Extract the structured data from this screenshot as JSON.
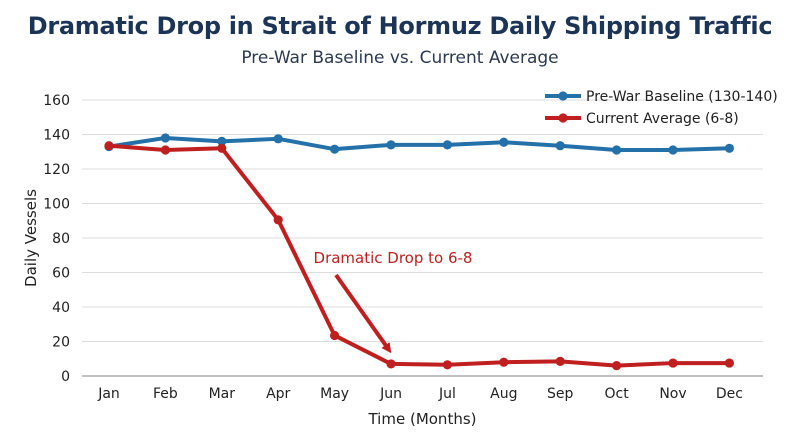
{
  "header": {
    "title": "Dramatic Drop in Strait of Hormuz Daily Shipping Traffic",
    "subtitle": "Pre-War Baseline vs. Current Average"
  },
  "colors": {
    "baseline": "#2470a9",
    "current": "#c01f1f",
    "grid": "#dcdcdc",
    "text": "#222222"
  },
  "chart_data": {
    "type": "line",
    "title": "Dramatic Drop in Strait of Hormuz Daily Shipping Traffic",
    "subtitle": "Pre-War Baseline vs. Current Average",
    "xlabel": "Time (Months)",
    "ylabel": "Daily Vessels",
    "categories": [
      "Jan",
      "Feb",
      "Mar",
      "Apr",
      "May",
      "Jun",
      "Jul",
      "Aug",
      "Sep",
      "Oct",
      "Nov",
      "Dec"
    ],
    "ylim": [
      0,
      160
    ],
    "yticks": [
      0,
      20,
      40,
      60,
      80,
      100,
      120,
      140,
      160
    ],
    "grid": true,
    "legend_position": "top-right",
    "series": [
      {
        "name": "Pre-War Baseline (130-140)",
        "color": "#2470a9",
        "values": [
          133,
          138,
          136,
          137.5,
          131.5,
          134,
          134,
          135.5,
          133.5,
          131,
          131,
          132
        ]
      },
      {
        "name": "Current Average (6-8)",
        "color": "#c01f1f",
        "values": [
          133.5,
          131,
          132,
          90.5,
          23.5,
          7,
          6.5,
          8,
          8.5,
          6,
          7.5,
          7.5
        ]
      }
    ],
    "annotation": {
      "text": "Dramatic Drop to 6-8",
      "target_category": "Jun",
      "target_value": 7
    }
  }
}
